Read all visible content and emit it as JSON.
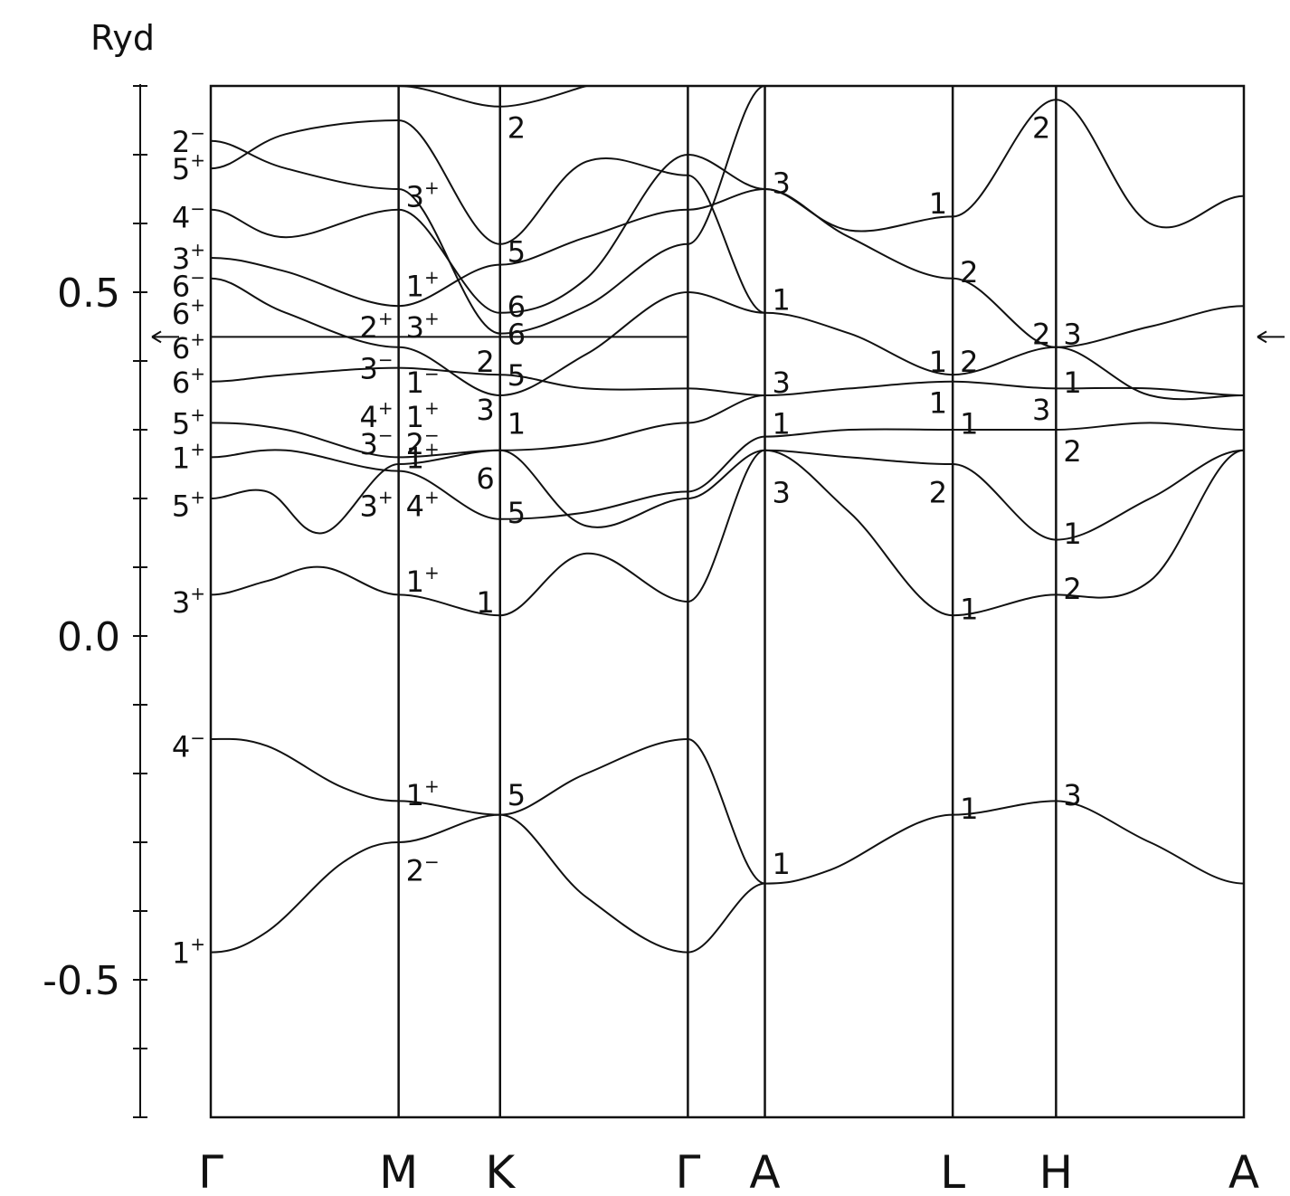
{
  "chart_data": {
    "type": "line",
    "ylabel": "Ryd",
    "ylim": [
      -0.7,
      0.8
    ],
    "y_ticks": [
      {
        "value": 0.5,
        "label": "0.5"
      },
      {
        "value": 0.0,
        "label": "0.0"
      },
      {
        "value": -0.5,
        "label": "-0.5"
      }
    ],
    "y_minor_tick_step": 0.1,
    "fermi_level": 0.435,
    "k_points": [
      {
        "label": "Γ",
        "x": 0.0
      },
      {
        "label": "M",
        "x": 1.0
      },
      {
        "label": "K",
        "x": 1.54
      },
      {
        "label": "Γ",
        "x": 2.54
      },
      {
        "label": "A",
        "x": 2.95
      },
      {
        "label": "L",
        "x": 3.95
      },
      {
        "label": "H",
        "x": 4.5
      },
      {
        "label": "A",
        "x": 5.5
      }
    ],
    "bands": [
      {
        "x": [
          0,
          0.3,
          0.7,
          1.0,
          1.54,
          2.0,
          2.54,
          2.95,
          3.3,
          3.95,
          4.5,
          5.0,
          5.5
        ],
        "y": [
          -0.46,
          -0.43,
          -0.33,
          -0.3,
          -0.26,
          -0.38,
          -0.46,
          -0.36,
          -0.34,
          -0.26,
          -0.24,
          -0.3,
          -0.36
        ]
      },
      {
        "x": [
          0,
          0.3,
          0.7,
          1.0,
          1.54,
          2.0,
          2.54,
          2.95
        ],
        "y": [
          -0.15,
          -0.16,
          -0.22,
          -0.24,
          -0.26,
          -0.2,
          -0.15,
          -0.36
        ]
      },
      {
        "x": [
          0,
          0.3,
          0.6,
          1.0,
          1.54,
          2.0,
          2.54,
          2.95,
          3.4,
          3.95,
          4.5,
          5.0,
          5.5
        ],
        "y": [
          0.06,
          0.08,
          0.1,
          0.06,
          0.03,
          0.12,
          0.05,
          0.27,
          0.18,
          0.03,
          0.06,
          0.08,
          0.27
        ]
      },
      {
        "x": [
          0,
          0.3,
          0.6,
          1.0,
          1.54,
          2.0,
          2.54,
          2.95,
          3.4,
          3.95,
          4.5,
          5.0,
          5.5
        ],
        "y": [
          0.2,
          0.21,
          0.15,
          0.25,
          0.27,
          0.16,
          0.2,
          0.27,
          0.26,
          0.25,
          0.14,
          0.2,
          0.27
        ]
      },
      {
        "x": [
          0,
          0.4,
          1.0,
          1.54,
          2.0,
          2.54,
          2.95,
          3.4,
          3.95,
          4.5,
          5.0,
          5.5
        ],
        "y": [
          0.26,
          0.27,
          0.24,
          0.17,
          0.18,
          0.21,
          0.29,
          0.3,
          0.3,
          0.3,
          0.31,
          0.3
        ]
      },
      {
        "x": [
          0,
          0.4,
          1.0,
          1.54,
          2.0,
          2.54,
          2.95
        ],
        "y": [
          0.31,
          0.3,
          0.26,
          0.27,
          0.28,
          0.31,
          0.35
        ]
      },
      {
        "x": [
          0,
          0.4,
          1.0,
          1.54,
          2.0,
          2.54,
          2.95,
          3.4,
          3.95,
          4.5,
          5.0,
          5.5
        ],
        "y": [
          0.37,
          0.38,
          0.39,
          0.38,
          0.36,
          0.36,
          0.35,
          0.36,
          0.37,
          0.36,
          0.36,
          0.35
        ]
      },
      {
        "x": [
          0,
          0.5,
          1.0,
          1.54,
          2.0,
          2.54
        ],
        "y": [
          0.435,
          0.435,
          0.435,
          0.435,
          0.435,
          0.435
        ]
      },
      {
        "x": [
          0,
          0.4,
          1.0,
          1.54,
          2.0,
          2.54,
          2.95,
          3.4,
          3.95,
          4.5,
          5.0,
          5.5
        ],
        "y": [
          0.52,
          0.47,
          0.42,
          0.35,
          0.41,
          0.5,
          0.47,
          0.44,
          0.38,
          0.42,
          0.45,
          0.48
        ]
      },
      {
        "x": [
          0,
          0.4,
          1.0,
          1.54,
          2.0,
          2.54,
          2.95,
          3.4,
          3.95,
          4.5,
          5.0,
          5.5
        ],
        "y": [
          0.55,
          0.53,
          0.48,
          0.54,
          0.58,
          0.62,
          0.65,
          0.58,
          0.52,
          0.42,
          0.35,
          0.35
        ]
      },
      {
        "x": [
          0,
          0.4,
          1.0,
          1.54,
          2.0,
          2.54,
          2.95,
          3.4,
          3.95,
          4.5,
          5.0,
          5.5
        ],
        "y": [
          0.62,
          0.58,
          0.62,
          0.47,
          0.52,
          0.7,
          0.65,
          0.59,
          0.61,
          0.78,
          0.6,
          0.64
        ]
      },
      {
        "x": [
          0,
          0.4,
          1.0,
          1.54,
          2.0,
          2.54,
          2.95
        ],
        "y": [
          0.68,
          0.73,
          0.75,
          0.57,
          0.69,
          0.67,
          0.47
        ]
      },
      {
        "x": [
          0,
          0.4,
          1.0,
          1.54,
          2.0,
          2.54,
          2.95
        ],
        "y": [
          0.72,
          0.68,
          0.65,
          0.44,
          0.48,
          0.57,
          0.8
        ]
      },
      {
        "x": [
          1.0,
          1.54,
          2.0
        ],
        "y": [
          0.8,
          0.77,
          0.8
        ]
      }
    ],
    "labels": [
      {
        "text": "2",
        "sup": "−",
        "kx": 0.0,
        "y": 0.72,
        "side": "left"
      },
      {
        "text": "5",
        "sup": "+",
        "kx": 0.0,
        "y": 0.68,
        "side": "left"
      },
      {
        "text": "4",
        "sup": "−",
        "kx": 0.0,
        "y": 0.61,
        "side": "left"
      },
      {
        "text": "3",
        "sup": "+",
        "kx": 0.0,
        "y": 0.55,
        "side": "left"
      },
      {
        "text": "6",
        "sup": "−",
        "kx": 0.0,
        "y": 0.51,
        "side": "left"
      },
      {
        "text": "6",
        "sup": "+",
        "kx": 0.0,
        "y": 0.47,
        "side": "left"
      },
      {
        "text": "6",
        "sup": "+",
        "kx": 0.0,
        "y": 0.42,
        "side": "left"
      },
      {
        "text": "6",
        "sup": "+",
        "kx": 0.0,
        "y": 0.37,
        "side": "left"
      },
      {
        "text": "5",
        "sup": "+",
        "kx": 0.0,
        "y": 0.31,
        "side": "left"
      },
      {
        "text": "1",
        "sup": "+",
        "kx": 0.0,
        "y": 0.26,
        "side": "left"
      },
      {
        "text": "5",
        "sup": "+",
        "kx": 0.0,
        "y": 0.19,
        "side": "left"
      },
      {
        "text": "3",
        "sup": "+",
        "kx": 0.0,
        "y": 0.05,
        "side": "left"
      },
      {
        "text": "4",
        "sup": "−",
        "kx": 0.0,
        "y": -0.16,
        "side": "left"
      },
      {
        "text": "1",
        "sup": "+",
        "kx": 0.0,
        "y": -0.46,
        "side": "left"
      },
      {
        "text": "3",
        "sup": "+",
        "kx": 1.0,
        "y": 0.64,
        "side": "right"
      },
      {
        "text": "1",
        "sup": "+",
        "kx": 1.0,
        "y": 0.51,
        "side": "right"
      },
      {
        "text": "2",
        "sup": "+",
        "kx": 1.0,
        "y": 0.45,
        "side": "left"
      },
      {
        "text": "3",
        "sup": "+",
        "kx": 1.0,
        "y": 0.45,
        "side": "right"
      },
      {
        "text": "3",
        "sup": "−",
        "kx": 1.0,
        "y": 0.39,
        "side": "left"
      },
      {
        "text": "1",
        "sup": "−",
        "kx": 1.0,
        "y": 0.37,
        "side": "right"
      },
      {
        "text": "4",
        "sup": "+",
        "kx": 1.0,
        "y": 0.32,
        "side": "left"
      },
      {
        "text": "1",
        "sup": "+",
        "kx": 1.0,
        "y": 0.32,
        "side": "right"
      },
      {
        "text": "3",
        "sup": "−",
        "kx": 1.0,
        "y": 0.28,
        "side": "left"
      },
      {
        "text": "2",
        "sup": "−",
        "kx": 1.0,
        "y": 0.28,
        "side": "right"
      },
      {
        "text": "1",
        "sup": "+",
        "kx": 1.0,
        "y": 0.26,
        "side": "right"
      },
      {
        "text": "3",
        "sup": "+",
        "kx": 1.0,
        "y": 0.19,
        "side": "left"
      },
      {
        "text": "4",
        "sup": "+",
        "kx": 1.0,
        "y": 0.19,
        "side": "right"
      },
      {
        "text": "1",
        "sup": "+",
        "kx": 1.0,
        "y": 0.08,
        "side": "right"
      },
      {
        "text": "1",
        "sup": "+",
        "kx": 1.0,
        "y": -0.23,
        "side": "right"
      },
      {
        "text": "2",
        "sup": "−",
        "kx": 1.0,
        "y": -0.34,
        "side": "right"
      },
      {
        "text": "2",
        "sup": "",
        "kx": 1.54,
        "y": 0.74,
        "side": "right"
      },
      {
        "text": "5",
        "sup": "",
        "kx": 1.54,
        "y": 0.56,
        "side": "right"
      },
      {
        "text": "6",
        "sup": "",
        "kx": 1.54,
        "y": 0.48,
        "side": "right"
      },
      {
        "text": "6",
        "sup": "",
        "kx": 1.54,
        "y": 0.44,
        "side": "right"
      },
      {
        "text": "2",
        "sup": "",
        "kx": 1.54,
        "y": 0.4,
        "side": "left"
      },
      {
        "text": "5",
        "sup": "",
        "kx": 1.54,
        "y": 0.38,
        "side": "right"
      },
      {
        "text": "3",
        "sup": "",
        "kx": 1.54,
        "y": 0.33,
        "side": "left"
      },
      {
        "text": "1",
        "sup": "",
        "kx": 1.54,
        "y": 0.31,
        "side": "right"
      },
      {
        "text": "6",
        "sup": "",
        "kx": 1.54,
        "y": 0.23,
        "side": "left"
      },
      {
        "text": "5",
        "sup": "",
        "kx": 1.54,
        "y": 0.18,
        "side": "right"
      },
      {
        "text": "1",
        "sup": "",
        "kx": 1.54,
        "y": 0.05,
        "side": "left"
      },
      {
        "text": "5",
        "sup": "",
        "kx": 1.54,
        "y": -0.23,
        "side": "right"
      },
      {
        "text": "3",
        "sup": "",
        "kx": 2.95,
        "y": 0.66,
        "side": "right"
      },
      {
        "text": "1",
        "sup": "",
        "kx": 2.95,
        "y": 0.49,
        "side": "right"
      },
      {
        "text": "3",
        "sup": "",
        "kx": 2.95,
        "y": 0.37,
        "side": "right"
      },
      {
        "text": "1",
        "sup": "",
        "kx": 2.95,
        "y": 0.31,
        "side": "right"
      },
      {
        "text": "3",
        "sup": "",
        "kx": 2.95,
        "y": 0.21,
        "side": "right"
      },
      {
        "text": "1",
        "sup": "",
        "kx": 2.95,
        "y": -0.33,
        "side": "right"
      },
      {
        "text": "1",
        "sup": "",
        "kx": 3.95,
        "y": 0.63,
        "side": "left"
      },
      {
        "text": "2",
        "sup": "",
        "kx": 3.95,
        "y": 0.53,
        "side": "right"
      },
      {
        "text": "1",
        "sup": "",
        "kx": 3.95,
        "y": 0.4,
        "side": "left"
      },
      {
        "text": "2",
        "sup": "",
        "kx": 3.95,
        "y": 0.4,
        "side": "right"
      },
      {
        "text": "1",
        "sup": "",
        "kx": 3.95,
        "y": 0.34,
        "side": "left"
      },
      {
        "text": "1",
        "sup": "",
        "kx": 3.95,
        "y": 0.31,
        "side": "right"
      },
      {
        "text": "2",
        "sup": "",
        "kx": 3.95,
        "y": 0.21,
        "side": "left"
      },
      {
        "text": "1",
        "sup": "",
        "kx": 3.95,
        "y": 0.04,
        "side": "right"
      },
      {
        "text": "1",
        "sup": "",
        "kx": 3.95,
        "y": -0.25,
        "side": "right"
      },
      {
        "text": "2",
        "sup": "",
        "kx": 4.5,
        "y": 0.74,
        "side": "left"
      },
      {
        "text": "2",
        "sup": "",
        "kx": 4.5,
        "y": 0.44,
        "side": "left"
      },
      {
        "text": "3",
        "sup": "",
        "kx": 4.5,
        "y": 0.44,
        "side": "right"
      },
      {
        "text": "1",
        "sup": "",
        "kx": 4.5,
        "y": 0.37,
        "side": "right"
      },
      {
        "text": "3",
        "sup": "",
        "kx": 4.5,
        "y": 0.33,
        "side": "left"
      },
      {
        "text": "2",
        "sup": "",
        "kx": 4.5,
        "y": 0.27,
        "side": "right"
      },
      {
        "text": "1",
        "sup": "",
        "kx": 4.5,
        "y": 0.15,
        "side": "right"
      },
      {
        "text": "2",
        "sup": "",
        "kx": 4.5,
        "y": 0.07,
        "side": "right"
      },
      {
        "text": "3",
        "sup": "",
        "kx": 4.5,
        "y": -0.23,
        "side": "right"
      }
    ]
  }
}
